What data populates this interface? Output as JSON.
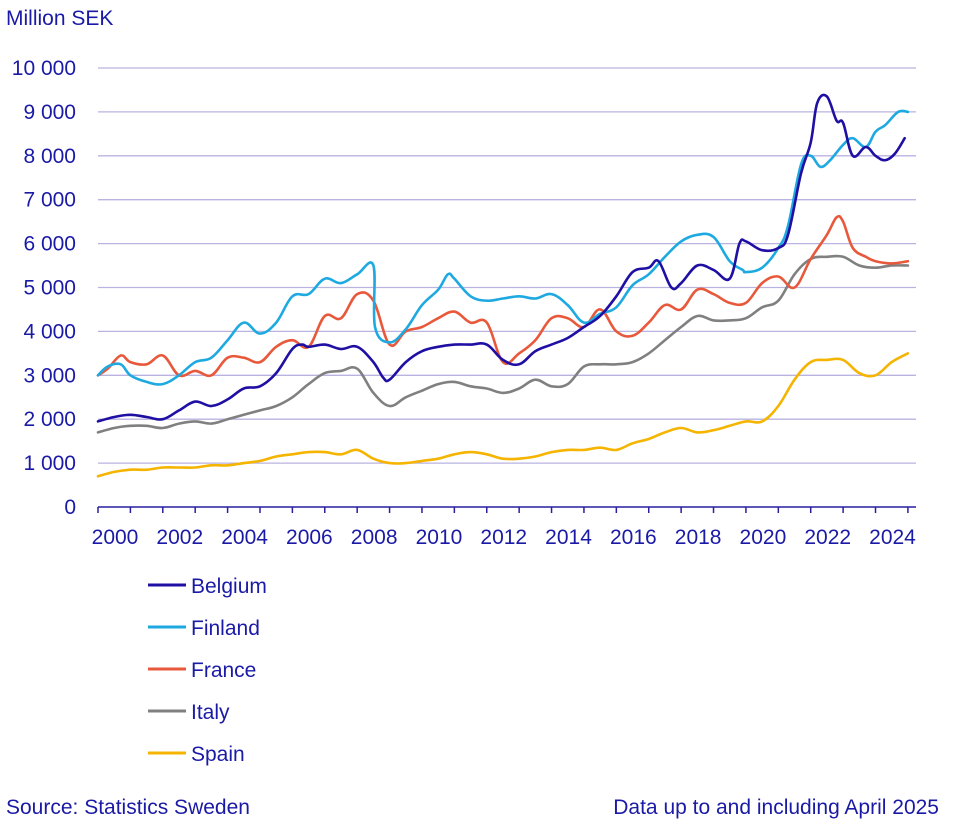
{
  "chart_data": {
    "type": "line",
    "title": "",
    "ylabel": "Million SEK",
    "xlabel": "",
    "ylim": [
      0,
      10000
    ],
    "xlim": [
      2000.0,
      2025.25
    ],
    "grid": true,
    "legend": "bottom-left",
    "yticks": [
      0,
      1000,
      2000,
      3000,
      4000,
      5000,
      6000,
      7000,
      8000,
      9000,
      10000
    ],
    "ytick_labels": [
      "0",
      "1 000",
      "2 000",
      "3 000",
      "4 000",
      "5 000",
      "6 000",
      "7 000",
      "8 000",
      "9 000",
      "10 000"
    ],
    "xticks": [
      2000,
      2002,
      2004,
      2006,
      2008,
      2010,
      2012,
      2014,
      2016,
      2018,
      2020,
      2022,
      2024
    ],
    "xtick_labels": [
      "2000",
      "2002",
      "2004",
      "2006",
      "2008",
      "2010",
      "2012",
      "2014",
      "2016",
      "2018",
      "2020",
      "2022",
      "2024"
    ],
    "series": [
      {
        "name": "Belgium",
        "color": "#1f0fa3",
        "x": [
          2000.0,
          2000.5,
          2001.0,
          2001.5,
          2002.0,
          2002.5,
          2003.0,
          2003.5,
          2004.0,
          2004.5,
          2005.0,
          2005.5,
          2006.0,
          2006.3,
          2006.5,
          2007.0,
          2007.5,
          2008.0,
          2008.5,
          2008.8,
          2009.0,
          2009.5,
          2010.0,
          2010.5,
          2011.0,
          2011.5,
          2012.0,
          2012.5,
          2013.0,
          2013.5,
          2014.0,
          2014.5,
          2015.0,
          2015.5,
          2016.0,
          2016.5,
          2017.0,
          2017.3,
          2017.7,
          2018.0,
          2018.5,
          2019.0,
          2019.5,
          2019.8,
          2020.0,
          2020.5,
          2021.0,
          2021.3,
          2021.7,
          2022.0,
          2022.2,
          2022.5,
          2022.8,
          2023.0,
          2023.3,
          2023.7,
          2024.0,
          2024.3,
          2024.6,
          2024.9
        ],
        "y": [
          1950,
          2050,
          2100,
          2050,
          2000,
          2200,
          2400,
          2300,
          2450,
          2700,
          2750,
          3050,
          3600,
          3700,
          3650,
          3700,
          3600,
          3650,
          3300,
          2950,
          2900,
          3300,
          3550,
          3650,
          3700,
          3700,
          3700,
          3350,
          3250,
          3550,
          3700,
          3850,
          4100,
          4350,
          4800,
          5350,
          5450,
          5600,
          5000,
          5100,
          5500,
          5400,
          5200,
          6000,
          6050,
          5850,
          5900,
          6200,
          7600,
          8300,
          9200,
          9350,
          8800,
          8750,
          8000,
          8200,
          8000,
          7900,
          8050,
          8400
        ]
      },
      {
        "name": "Finland",
        "color": "#1ea9e0",
        "x": [
          2000.0,
          2000.3,
          2000.7,
          2001.0,
          2001.5,
          2002.0,
          2002.5,
          2003.0,
          2003.5,
          2004.0,
          2004.5,
          2005.0,
          2005.5,
          2006.0,
          2006.5,
          2007.0,
          2007.5,
          2008.0,
          2008.5,
          2008.55,
          2009.0,
          2009.5,
          2010.0,
          2010.5,
          2010.8,
          2011.0,
          2011.5,
          2012.0,
          2012.5,
          2013.0,
          2013.5,
          2014.0,
          2014.5,
          2015.0,
          2015.5,
          2016.0,
          2016.5,
          2017.0,
          2017.5,
          2018.0,
          2018.5,
          2019.0,
          2019.5,
          2019.9,
          2020.0,
          2020.5,
          2021.0,
          2021.3,
          2021.7,
          2022.0,
          2022.3,
          2022.6,
          2023.0,
          2023.3,
          2023.7,
          2024.0,
          2024.3,
          2024.7,
          2025.0
        ],
        "y": [
          3000,
          3200,
          3250,
          3000,
          2850,
          2800,
          3000,
          3300,
          3400,
          3800,
          4200,
          3950,
          4200,
          4800,
          4850,
          5200,
          5100,
          5300,
          5500,
          4100,
          3750,
          4050,
          4600,
          4950,
          5300,
          5200,
          4800,
          4700,
          4750,
          4800,
          4750,
          4850,
          4600,
          4200,
          4400,
          4550,
          5050,
          5300,
          5700,
          6050,
          6200,
          6150,
          5600,
          5400,
          5350,
          5450,
          5900,
          6400,
          7800,
          8000,
          7750,
          7900,
          8250,
          8400,
          8200,
          8550,
          8700,
          9000,
          9000
        ]
      },
      {
        "name": "France",
        "color": "#e8593c",
        "x": [
          2000.0,
          2000.3,
          2000.7,
          2001.0,
          2001.5,
          2002.0,
          2002.5,
          2003.0,
          2003.5,
          2004.0,
          2004.5,
          2005.0,
          2005.5,
          2006.0,
          2006.5,
          2007.0,
          2007.5,
          2008.0,
          2008.5,
          2009.0,
          2009.5,
          2010.0,
          2010.5,
          2011.0,
          2011.5,
          2012.0,
          2012.5,
          2013.0,
          2013.5,
          2014.0,
          2014.5,
          2015.0,
          2015.5,
          2016.0,
          2016.5,
          2017.0,
          2017.5,
          2018.0,
          2018.5,
          2019.0,
          2019.5,
          2020.0,
          2020.5,
          2021.0,
          2021.5,
          2022.0,
          2022.5,
          2022.8,
          2023.0,
          2023.3,
          2023.7,
          2024.0,
          2024.5,
          2025.0
        ],
        "y": [
          3000,
          3150,
          3450,
          3300,
          3250,
          3450,
          3000,
          3100,
          3000,
          3400,
          3400,
          3300,
          3650,
          3800,
          3650,
          4350,
          4300,
          4850,
          4700,
          3700,
          4000,
          4100,
          4300,
          4450,
          4200,
          4200,
          3300,
          3500,
          3800,
          4300,
          4300,
          4100,
          4500,
          4000,
          3900,
          4200,
          4600,
          4500,
          4950,
          4850,
          4650,
          4650,
          5100,
          5250,
          5000,
          5650,
          6200,
          6600,
          6500,
          5900,
          5700,
          5600,
          5550,
          5600
        ]
      },
      {
        "name": "Italy",
        "color": "#808080",
        "x": [
          2000.0,
          2000.5,
          2001.0,
          2001.5,
          2002.0,
          2002.5,
          2003.0,
          2003.5,
          2004.0,
          2004.5,
          2005.0,
          2005.5,
          2006.0,
          2006.5,
          2007.0,
          2007.5,
          2008.0,
          2008.5,
          2009.0,
          2009.5,
          2010.0,
          2010.5,
          2011.0,
          2011.5,
          2012.0,
          2012.5,
          2013.0,
          2013.5,
          2014.0,
          2014.5,
          2015.0,
          2015.5,
          2016.0,
          2016.5,
          2017.0,
          2017.5,
          2018.0,
          2018.5,
          2019.0,
          2019.5,
          2020.0,
          2020.5,
          2021.0,
          2021.5,
          2022.0,
          2022.5,
          2023.0,
          2023.5,
          2024.0,
          2024.5,
          2025.0
        ],
        "y": [
          1700,
          1800,
          1850,
          1850,
          1800,
          1900,
          1950,
          1900,
          2000,
          2100,
          2200,
          2300,
          2500,
          2800,
          3050,
          3100,
          3150,
          2600,
          2300,
          2500,
          2650,
          2800,
          2850,
          2750,
          2700,
          2600,
          2700,
          2900,
          2750,
          2800,
          3200,
          3250,
          3250,
          3300,
          3500,
          3800,
          4100,
          4350,
          4250,
          4250,
          4300,
          4550,
          4700,
          5300,
          5650,
          5700,
          5700,
          5500,
          5450,
          5500,
          5500
        ]
      },
      {
        "name": "Spain",
        "color": "#f5b400",
        "x": [
          2000.0,
          2000.5,
          2001.0,
          2001.5,
          2002.0,
          2002.5,
          2003.0,
          2003.5,
          2004.0,
          2004.5,
          2005.0,
          2005.5,
          2006.0,
          2006.5,
          2007.0,
          2007.5,
          2008.0,
          2008.5,
          2009.0,
          2009.5,
          2010.0,
          2010.5,
          2011.0,
          2011.5,
          2012.0,
          2012.5,
          2013.0,
          2013.5,
          2014.0,
          2014.5,
          2015.0,
          2015.5,
          2016.0,
          2016.5,
          2017.0,
          2017.5,
          2018.0,
          2018.5,
          2019.0,
          2019.5,
          2020.0,
          2020.5,
          2021.0,
          2021.5,
          2022.0,
          2022.5,
          2023.0,
          2023.5,
          2024.0,
          2024.5,
          2025.0
        ],
        "y": [
          700,
          800,
          850,
          850,
          900,
          900,
          900,
          950,
          950,
          1000,
          1050,
          1150,
          1200,
          1250,
          1250,
          1200,
          1300,
          1100,
          1000,
          1000,
          1050,
          1100,
          1200,
          1250,
          1200,
          1100,
          1100,
          1150,
          1250,
          1300,
          1300,
          1350,
          1300,
          1450,
          1550,
          1700,
          1800,
          1700,
          1750,
          1850,
          1950,
          1950,
          2300,
          2900,
          3300,
          3350,
          3350,
          3050,
          3000,
          3300,
          3500
        ]
      }
    ]
  },
  "source_text": "Source: Statistics Sweden",
  "note_text": "Data up to and including April 2025"
}
